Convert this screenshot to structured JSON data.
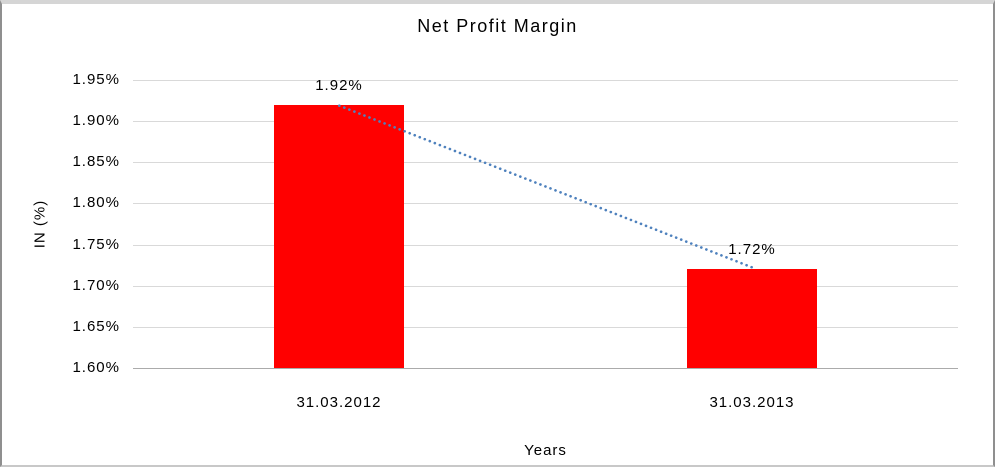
{
  "chart_data": {
    "type": "bar",
    "title": "Net Profit Margin",
    "xlabel": "Years",
    "ylabel": "IN (%)",
    "categories": [
      "31.03.2012",
      "31.03.2013"
    ],
    "values": [
      1.92,
      1.72
    ],
    "data_labels": [
      "1.92%",
      "1.72%"
    ],
    "y_ticks": [
      1.95,
      1.9,
      1.85,
      1.8,
      1.75,
      1.7,
      1.65,
      1.6
    ],
    "y_tick_labels": [
      "1.95%",
      "1.90%",
      "1.85%",
      "1.80%",
      "1.75%",
      "1.70%",
      "1.65%",
      "1.60%"
    ],
    "ylim": [
      1.6,
      1.95
    ],
    "grid": true,
    "legend": false,
    "bar_color": "#FF0000",
    "gridline_color": "#D9D9D9",
    "axis_line_color": "#ABABAB",
    "text_color": "#000000",
    "trendline": {
      "style": "dotted",
      "color": "#4E81BD"
    }
  }
}
